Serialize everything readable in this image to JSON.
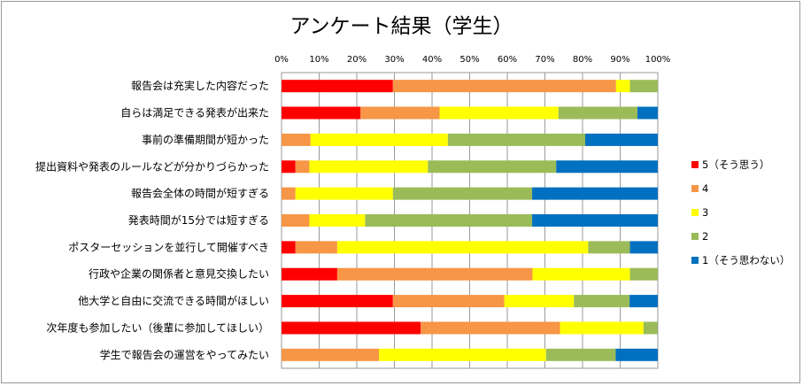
{
  "chart_data": {
    "type": "bar",
    "orientation": "horizontal",
    "stacked": "percent",
    "title": "アンケート結果（学生）",
    "xlim": [
      0,
      100
    ],
    "x_ticks": [
      "0%",
      "10%",
      "20%",
      "30%",
      "40%",
      "50%",
      "60%",
      "70%",
      "80%",
      "90%",
      "100%"
    ],
    "grid": true,
    "legend_position": "right",
    "categories": [
      "報告会は充実した内容だった",
      "自らは満足できる発表が出来た",
      "事前の準備期間が短かった",
      "提出資料や発表のルールなどが分かりづらかった",
      "報告会全体の時間が短すぎる",
      "発表時間が15分では短すぎる",
      "ポスターセッションを並行して開催すべき",
      "行政や企業の関係者と意見交換したい",
      "他大学と自由に交流できる時間がほしい",
      "次年度も参加したい（後輩に参加してほしい）",
      "学生で報告会の運営をやってみたい"
    ],
    "series": [
      {
        "name": "5（そう思う）",
        "color": "#ff0000",
        "values": [
          29.6,
          21.0,
          0,
          3.7,
          0,
          0,
          3.7,
          14.8,
          29.6,
          37.0,
          0
        ]
      },
      {
        "name": "4",
        "color": "#f79646",
        "values": [
          59.3,
          21.0,
          7.7,
          3.7,
          3.7,
          7.4,
          11.1,
          51.9,
          29.6,
          37.0,
          25.9
        ]
      },
      {
        "name": "3",
        "color": "#ffff00",
        "values": [
          3.7,
          31.6,
          36.5,
          31.5,
          25.9,
          14.8,
          66.7,
          25.9,
          18.5,
          22.2,
          44.4
        ]
      },
      {
        "name": "2",
        "color": "#9bbb59",
        "values": [
          7.4,
          21.0,
          36.5,
          34.1,
          37.0,
          44.4,
          11.1,
          7.4,
          14.8,
          3.7,
          18.5
        ]
      },
      {
        "name": "1（そう思わない）",
        "color": "#0070c0",
        "values": [
          0,
          5.4,
          19.3,
          27.0,
          33.4,
          33.4,
          7.4,
          0,
          7.5,
          0,
          11.2
        ]
      }
    ]
  }
}
